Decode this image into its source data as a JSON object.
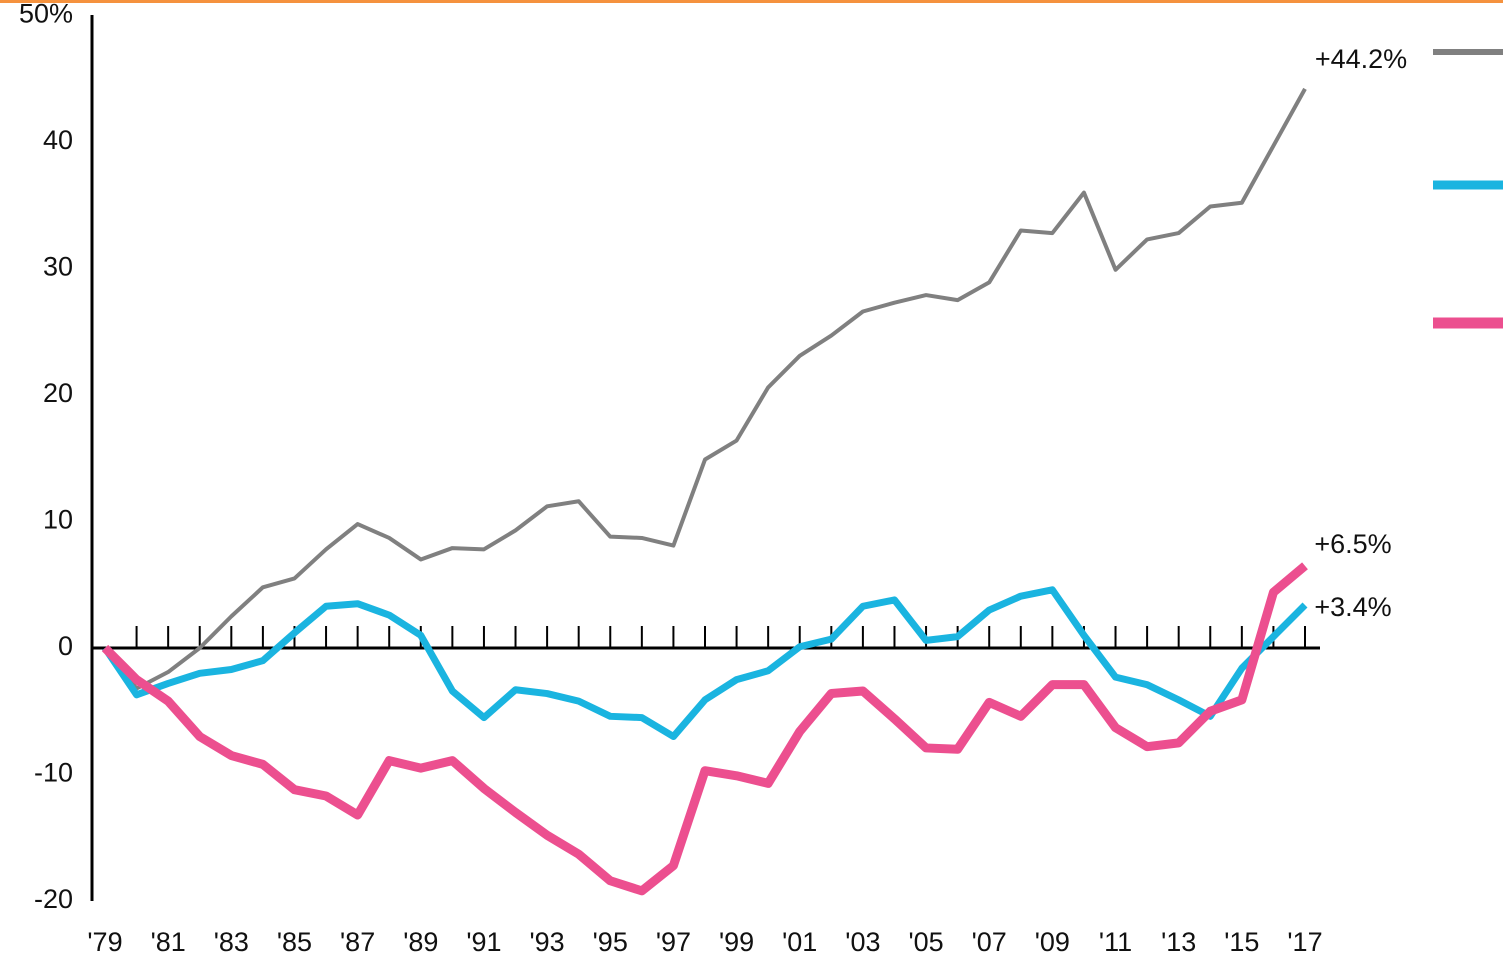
{
  "chart_data": {
    "type": "line",
    "categories": [
      "'79",
      null,
      "'81",
      null,
      "'83",
      null,
      "'85",
      null,
      "'87",
      null,
      "'89",
      null,
      "'91",
      null,
      "'93",
      null,
      "'95",
      null,
      "'97",
      null,
      "'99",
      null,
      "'01",
      null,
      "'03",
      null,
      "'05",
      null,
      "'07",
      null,
      "'09",
      null,
      "'11",
      null,
      "'13",
      null,
      "'15",
      null,
      "'17"
    ],
    "series": [
      {
        "color": "#808080",
        "width": 4,
        "end_label": "+44.2%",
        "values": [
          0,
          -3.2,
          -1.9,
          0,
          2.5,
          4.8,
          5.5,
          7.8,
          9.8,
          8.7,
          7,
          7.9,
          7.8,
          9.3,
          11.2,
          11.6,
          8.8,
          8.7,
          8.1,
          14.9,
          16.4,
          20.6,
          23.1,
          24.7,
          26.6,
          27.3,
          27.9,
          27.5,
          28.9,
          33,
          32.8,
          36,
          29.9,
          32.3,
          32.8,
          34.9,
          35.2,
          39.7,
          44.2
        ]
      },
      {
        "color": "#1ab4e0",
        "width": 7,
        "end_label": "+3.4%",
        "values": [
          0,
          -3.7,
          -2.8,
          -2,
          -1.7,
          -1,
          1.2,
          3.3,
          3.5,
          2.6,
          1,
          -3.4,
          -5.5,
          -3.3,
          -3.6,
          -4.2,
          -5.4,
          -5.5,
          -7,
          -4.1,
          -2.5,
          -1.8,
          0.1,
          0.7,
          3.3,
          3.8,
          0.6,
          0.9,
          3,
          4.1,
          4.6,
          1,
          -2.3,
          -2.9,
          -4.1,
          -5.4,
          -1.6,
          0.9,
          3.4
        ]
      },
      {
        "color": "#ec4f8f",
        "width": 9,
        "end_label": "+6.5%",
        "values": [
          0,
          -2.5,
          -4.2,
          -7,
          -8.5,
          -9.2,
          -11.2,
          -11.7,
          -13.2,
          -8.9,
          -9.5,
          -8.9,
          -11.1,
          -13,
          -14.8,
          -16.3,
          -18.4,
          -19.2,
          -17.2,
          -9.7,
          -10.1,
          -10.7,
          -6.6,
          -3.6,
          -3.4,
          -5.6,
          -7.9,
          -8,
          -4.3,
          -5.4,
          -2.9,
          -2.9,
          -6.3,
          -7.8,
          -7.5,
          -5,
          -4.1,
          4.4,
          6.5
        ]
      }
    ],
    "ylim": [
      -20,
      50
    ],
    "yticks": [
      {
        "value": 50,
        "label": "50%"
      },
      40,
      30,
      20,
      10,
      0,
      -10,
      -20
    ],
    "grid": false
  }
}
